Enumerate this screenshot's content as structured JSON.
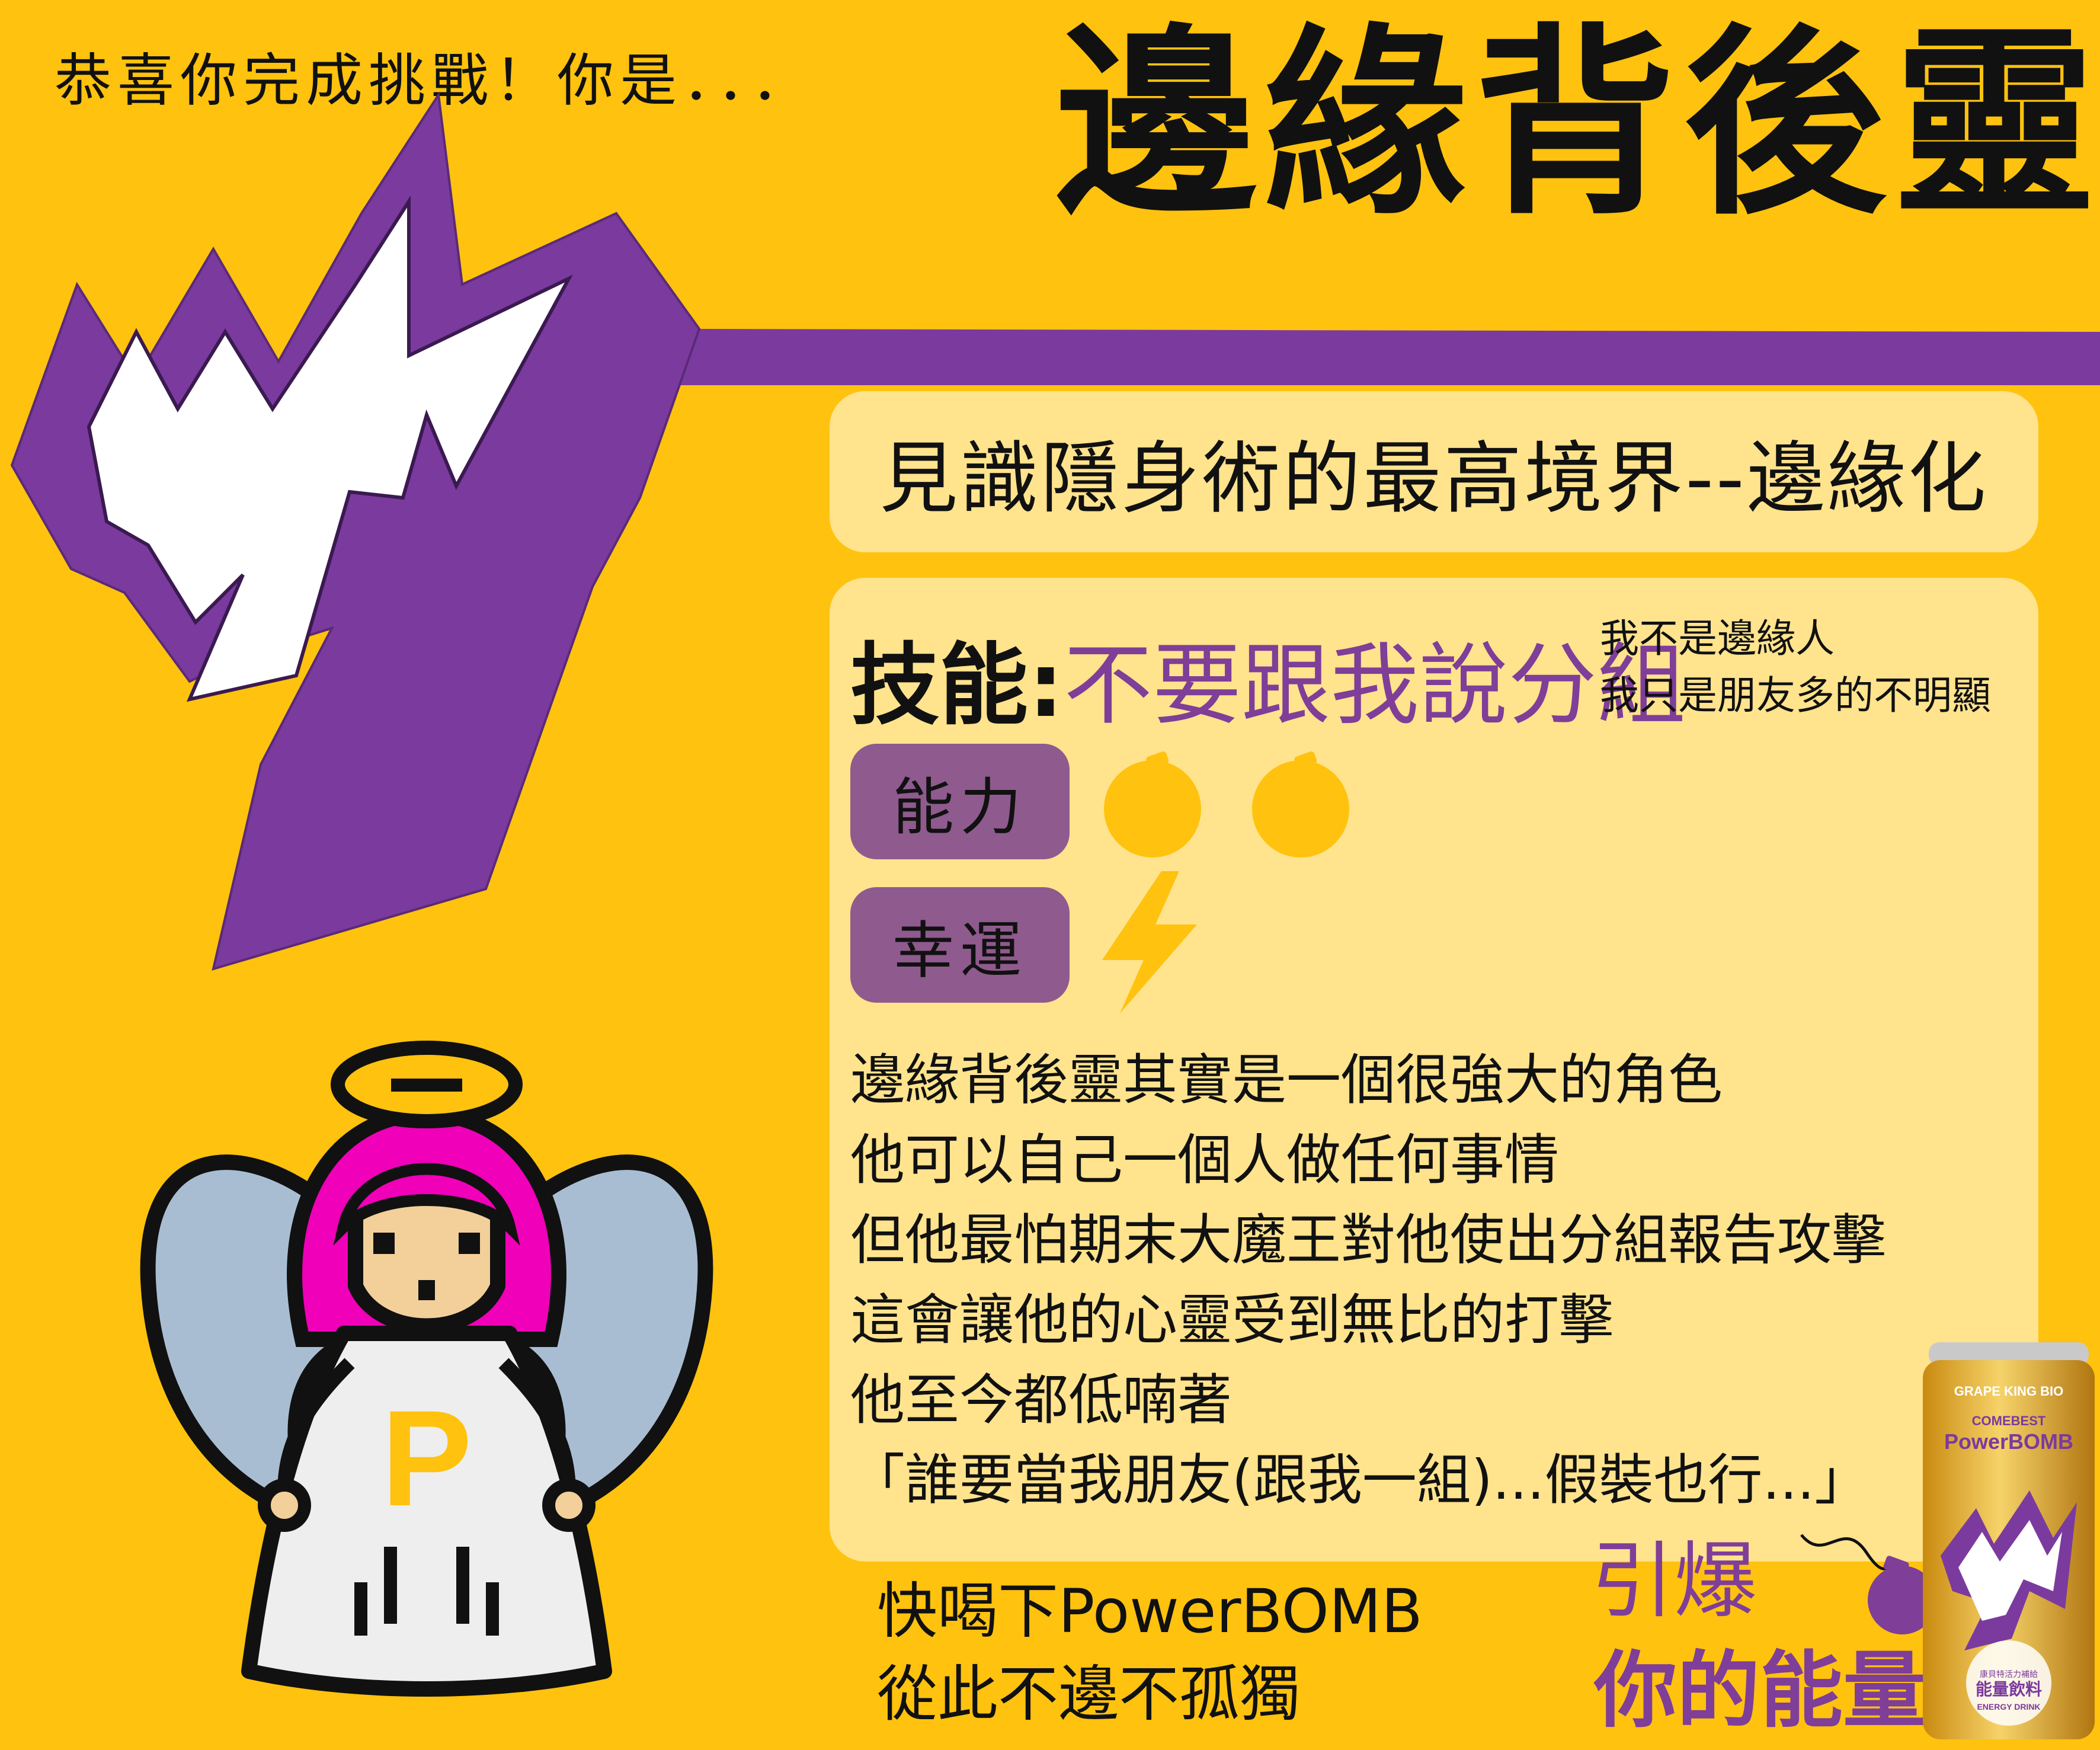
{
  "intro": "恭喜你完成挑戰！你是．．．",
  "title": "邊緣背後靈",
  "subtitle": "見識隱身術的最高境界--邊緣化",
  "skill": {
    "label": "技能:",
    "value": "不要跟我說分組",
    "notes": [
      "我不是邊緣人",
      "我只是朋友多的不明顯"
    ]
  },
  "stats": [
    {
      "label": "能力",
      "rating": 2,
      "icon": "bomb-icon"
    },
    {
      "label": "幸運",
      "rating": 1,
      "icon": "lightning-icon"
    }
  ],
  "description": [
    "邊緣背後靈其實是一個很強大的角色",
    "他可以自己一個人做任何事情",
    "但他最怕期末大魔王對他使出分組報告攻擊",
    "這會讓他的心靈受到無比的打擊",
    "他至今都低喃著",
    "「誰要當我朋友(跟我一組)...假裝也行...」"
  ],
  "promo": [
    "快喝下PowerBOMB",
    "從此不邊不孤獨"
  ],
  "slogan": {
    "line1": "引爆",
    "line2": "你的能量"
  },
  "can": {
    "brand": "GRAPE KING BIO",
    "sub": "COMEBEST",
    "name": "PowerBOMB",
    "label": "能量飲料",
    "label_en": "ENERGY DRINK",
    "label_small": "康貝特活力補給"
  },
  "mascot_letter": "P",
  "colors": {
    "background": "#FFC20E",
    "panel": "#FFE38D",
    "purple": "#7B3A9E",
    "pill": "#8F5A8E",
    "hair": "#F000B8",
    "wing": "#A9BDD2"
  }
}
